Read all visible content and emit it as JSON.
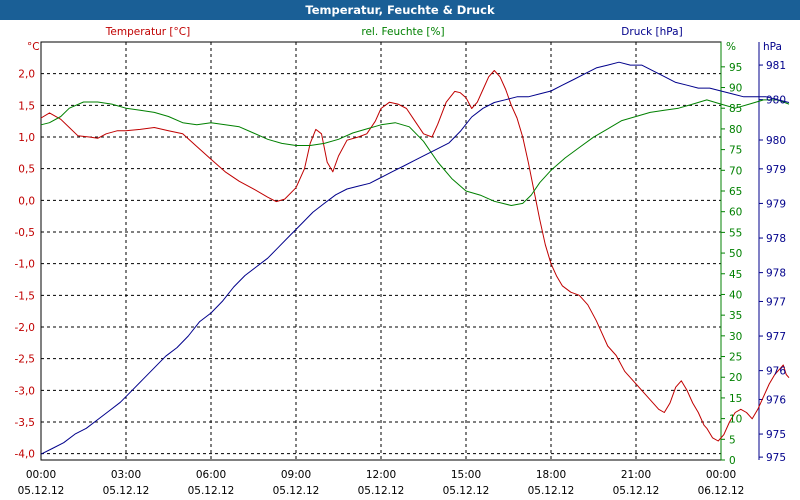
{
  "window": {
    "title": "Temperatur, Feuchte & Druck"
  },
  "chart_data": {
    "type": "line",
    "title": "Temperatur, Feuchte & Druck",
    "grid": true,
    "x_ticks": [
      {
        "time": "00:00",
        "date": "05.12.12"
      },
      {
        "time": "03:00",
        "date": "05.12.12"
      },
      {
        "time": "06:00",
        "date": "05.12.12"
      },
      {
        "time": "09:00",
        "date": "05.12.12"
      },
      {
        "time": "12:00",
        "date": "05.12.12"
      },
      {
        "time": "15:00",
        "date": "05.12.12"
      },
      {
        "time": "18:00",
        "date": "05.12.12"
      },
      {
        "time": "21:00",
        "date": "05.12.12"
      },
      {
        "time": "00:00",
        "date": "06.12.12"
      }
    ],
    "x_range_hours": [
      0,
      24
    ],
    "axes": {
      "temperature": {
        "unit": "°C",
        "range": [
          -4.1,
          2.5
        ],
        "ticks": [
          "2,0",
          "1,5",
          "1,0",
          "0,5",
          "0,0",
          "-0,5",
          "-1,0",
          "-1,5",
          "-2,0",
          "-2,5",
          "-3,0",
          "-3,5",
          "-4,0"
        ],
        "tick_values": [
          2.0,
          1.5,
          1.0,
          0.5,
          0.0,
          -0.5,
          -1.0,
          -1.5,
          -2.0,
          -2.5,
          -3.0,
          -3.5,
          -4.0
        ],
        "color": "#c00000"
      },
      "humidity": {
        "unit": "%",
        "range": [
          0,
          101
        ],
        "ticks": [
          "95",
          "90",
          "85",
          "80",
          "75",
          "70",
          "65",
          "60",
          "55",
          "50",
          "45",
          "40",
          "35",
          "30",
          "25",
          "20",
          "15",
          "10",
          "5",
          "0"
        ],
        "tick_values": [
          95,
          90,
          85,
          80,
          75,
          70,
          65,
          60,
          55,
          50,
          45,
          40,
          35,
          30,
          25,
          20,
          15,
          10,
          5,
          0
        ],
        "color": "#008000"
      },
      "pressure": {
        "unit": "hPa",
        "range": [
          974.45,
          981.7
        ],
        "ticks": [
          "981",
          "980",
          "980",
          "979",
          "979",
          "978",
          "978",
          "977",
          "977",
          "976",
          "976",
          "975",
          "975"
        ],
        "tick_values": [
          981.3,
          980.7,
          980.0,
          979.5,
          978.9,
          978.3,
          977.7,
          977.2,
          976.6,
          976.0,
          975.5,
          974.9,
          974.5
        ],
        "color": "#00008b"
      }
    },
    "series": [
      {
        "name": "Temperatur [°C]",
        "axis": "temperature",
        "color": "#c00000",
        "points": [
          [
            0,
            1.3
          ],
          [
            0.3,
            1.38
          ],
          [
            0.7,
            1.28
          ],
          [
            1.0,
            1.15
          ],
          [
            1.3,
            1.02
          ],
          [
            1.7,
            1.0
          ],
          [
            2.0,
            0.98
          ],
          [
            2.3,
            1.05
          ],
          [
            2.7,
            1.1
          ],
          [
            3.0,
            1.1
          ],
          [
            3.5,
            1.12
          ],
          [
            4.0,
            1.15
          ],
          [
            4.5,
            1.1
          ],
          [
            5.0,
            1.05
          ],
          [
            5.5,
            0.85
          ],
          [
            6.0,
            0.65
          ],
          [
            6.5,
            0.45
          ],
          [
            7.0,
            0.3
          ],
          [
            7.5,
            0.18
          ],
          [
            8.0,
            0.05
          ],
          [
            8.3,
            -0.02
          ],
          [
            8.6,
            0.02
          ],
          [
            9.0,
            0.2
          ],
          [
            9.3,
            0.5
          ],
          [
            9.5,
            0.9
          ],
          [
            9.7,
            1.12
          ],
          [
            9.9,
            1.05
          ],
          [
            10.1,
            0.6
          ],
          [
            10.3,
            0.45
          ],
          [
            10.5,
            0.7
          ],
          [
            10.8,
            0.95
          ],
          [
            11.2,
            1.0
          ],
          [
            11.5,
            1.05
          ],
          [
            11.8,
            1.25
          ],
          [
            12.0,
            1.45
          ],
          [
            12.3,
            1.55
          ],
          [
            12.6,
            1.52
          ],
          [
            12.9,
            1.45
          ],
          [
            13.2,
            1.25
          ],
          [
            13.5,
            1.05
          ],
          [
            13.8,
            1.0
          ],
          [
            14.0,
            1.2
          ],
          [
            14.3,
            1.55
          ],
          [
            14.6,
            1.72
          ],
          [
            14.8,
            1.7
          ],
          [
            15.0,
            1.62
          ],
          [
            15.2,
            1.45
          ],
          [
            15.4,
            1.55
          ],
          [
            15.6,
            1.75
          ],
          [
            15.8,
            1.95
          ],
          [
            16.0,
            2.05
          ],
          [
            16.2,
            1.95
          ],
          [
            16.4,
            1.75
          ],
          [
            16.6,
            1.5
          ],
          [
            16.8,
            1.3
          ],
          [
            17.0,
            1.0
          ],
          [
            17.2,
            0.6
          ],
          [
            17.4,
            0.15
          ],
          [
            17.6,
            -0.3
          ],
          [
            17.8,
            -0.7
          ],
          [
            18.0,
            -1.0
          ],
          [
            18.2,
            -1.2
          ],
          [
            18.4,
            -1.35
          ],
          [
            18.7,
            -1.45
          ],
          [
            19.0,
            -1.5
          ],
          [
            19.3,
            -1.65
          ],
          [
            19.6,
            -1.9
          ],
          [
            19.8,
            -2.1
          ],
          [
            20.0,
            -2.3
          ],
          [
            20.3,
            -2.45
          ],
          [
            20.6,
            -2.7
          ],
          [
            20.9,
            -2.85
          ],
          [
            21.2,
            -3.0
          ],
          [
            21.5,
            -3.15
          ],
          [
            21.8,
            -3.3
          ],
          [
            22.0,
            -3.35
          ],
          [
            22.2,
            -3.2
          ],
          [
            22.4,
            -2.95
          ],
          [
            22.6,
            -2.85
          ],
          [
            22.8,
            -3.0
          ],
          [
            23.0,
            -3.2
          ],
          [
            23.2,
            -3.35
          ],
          [
            23.4,
            -3.55
          ],
          [
            23.5,
            -3.6
          ],
          [
            23.7,
            -3.75
          ],
          [
            23.9,
            -3.8
          ],
          [
            24.1,
            -3.7
          ],
          [
            24.3,
            -3.5
          ],
          [
            24.5,
            -3.35
          ],
          [
            24.7,
            -3.3
          ],
          [
            24.9,
            -3.35
          ],
          [
            25.1,
            -3.45
          ],
          [
            25.3,
            -3.3
          ],
          [
            25.5,
            -3.1
          ],
          [
            25.7,
            -2.9
          ],
          [
            25.9,
            -2.75
          ],
          [
            26.1,
            -2.65
          ],
          [
            26.2,
            -2.6
          ],
          [
            26.3,
            -2.75
          ],
          [
            26.4,
            -2.8
          ]
        ]
      },
      {
        "name": "rel. Feuchte [%]",
        "axis": "humidity",
        "color": "#008000",
        "points": [
          [
            0,
            81
          ],
          [
            0.3,
            81.5
          ],
          [
            0.7,
            83
          ],
          [
            1.0,
            85
          ],
          [
            1.5,
            86.5
          ],
          [
            2.0,
            86.5
          ],
          [
            2.5,
            86
          ],
          [
            3.0,
            85
          ],
          [
            3.5,
            84.5
          ],
          [
            4.0,
            84
          ],
          [
            4.5,
            83
          ],
          [
            5.0,
            81.5
          ],
          [
            5.5,
            81
          ],
          [
            6.0,
            81.5
          ],
          [
            6.5,
            81
          ],
          [
            7.0,
            80.5
          ],
          [
            7.5,
            79
          ],
          [
            8.0,
            77.5
          ],
          [
            8.5,
            76.5
          ],
          [
            9.0,
            76
          ],
          [
            9.5,
            76
          ],
          [
            10.0,
            76.5
          ],
          [
            10.5,
            77.5
          ],
          [
            11.0,
            79
          ],
          [
            11.5,
            80
          ],
          [
            12.0,
            81
          ],
          [
            12.5,
            81.5
          ],
          [
            13.0,
            80.5
          ],
          [
            13.5,
            77
          ],
          [
            14.0,
            72
          ],
          [
            14.5,
            68
          ],
          [
            15.0,
            65
          ],
          [
            15.5,
            64
          ],
          [
            16.0,
            62.5
          ],
          [
            16.3,
            62
          ],
          [
            16.6,
            61.5
          ],
          [
            17.0,
            62
          ],
          [
            17.3,
            64
          ],
          [
            17.6,
            67
          ],
          [
            18.0,
            70
          ],
          [
            18.5,
            73
          ],
          [
            19.0,
            75.5
          ],
          [
            19.5,
            78
          ],
          [
            20.0,
            80
          ],
          [
            20.5,
            82
          ],
          [
            21.0,
            83
          ],
          [
            21.5,
            84
          ],
          [
            22.0,
            84.5
          ],
          [
            22.5,
            85
          ],
          [
            23.0,
            86
          ],
          [
            23.5,
            87
          ],
          [
            24.0,
            86
          ],
          [
            24.5,
            85
          ],
          [
            25.0,
            86
          ],
          [
            25.5,
            87
          ],
          [
            26.0,
            87
          ],
          [
            26.4,
            86
          ]
        ]
      },
      {
        "name": "Druck [hPa]",
        "axis": "pressure",
        "color": "#00008b",
        "points": [
          [
            0,
            974.55
          ],
          [
            0.4,
            974.65
          ],
          [
            0.8,
            974.75
          ],
          [
            1.2,
            974.9
          ],
          [
            1.6,
            975.0
          ],
          [
            2.0,
            975.15
          ],
          [
            2.4,
            975.3
          ],
          [
            2.8,
            975.45
          ],
          [
            3.2,
            975.65
          ],
          [
            3.6,
            975.85
          ],
          [
            4.0,
            976.05
          ],
          [
            4.4,
            976.25
          ],
          [
            4.8,
            976.4
          ],
          [
            5.2,
            976.6
          ],
          [
            5.6,
            976.85
          ],
          [
            6.0,
            977.0
          ],
          [
            6.4,
            977.2
          ],
          [
            6.8,
            977.45
          ],
          [
            7.2,
            977.65
          ],
          [
            7.6,
            977.8
          ],
          [
            8.0,
            977.95
          ],
          [
            8.4,
            978.15
          ],
          [
            8.8,
            978.35
          ],
          [
            9.2,
            978.55
          ],
          [
            9.6,
            978.75
          ],
          [
            10.0,
            978.9
          ],
          [
            10.4,
            979.05
          ],
          [
            10.8,
            979.15
          ],
          [
            11.2,
            979.2
          ],
          [
            11.6,
            979.25
          ],
          [
            12.0,
            979.35
          ],
          [
            12.4,
            979.45
          ],
          [
            12.8,
            979.55
          ],
          [
            13.2,
            979.65
          ],
          [
            13.6,
            979.75
          ],
          [
            14.0,
            979.85
          ],
          [
            14.4,
            979.95
          ],
          [
            14.8,
            980.15
          ],
          [
            15.2,
            980.4
          ],
          [
            15.6,
            980.55
          ],
          [
            16.0,
            980.65
          ],
          [
            16.4,
            980.7
          ],
          [
            16.8,
            980.75
          ],
          [
            17.2,
            980.75
          ],
          [
            17.6,
            980.8
          ],
          [
            18.0,
            980.85
          ],
          [
            18.4,
            980.95
          ],
          [
            18.8,
            981.05
          ],
          [
            19.2,
            981.15
          ],
          [
            19.6,
            981.25
          ],
          [
            20.0,
            981.3
          ],
          [
            20.4,
            981.35
          ],
          [
            20.8,
            981.3
          ],
          [
            21.2,
            981.3
          ],
          [
            21.6,
            981.2
          ],
          [
            22.0,
            981.1
          ],
          [
            22.4,
            981.0
          ],
          [
            22.8,
            980.95
          ],
          [
            23.2,
            980.9
          ],
          [
            23.6,
            980.9
          ],
          [
            24.0,
            980.85
          ],
          [
            24.4,
            980.8
          ],
          [
            24.8,
            980.75
          ],
          [
            25.2,
            980.75
          ],
          [
            25.6,
            980.75
          ],
          [
            26.0,
            980.7
          ],
          [
            26.4,
            980.65
          ]
        ]
      }
    ]
  }
}
